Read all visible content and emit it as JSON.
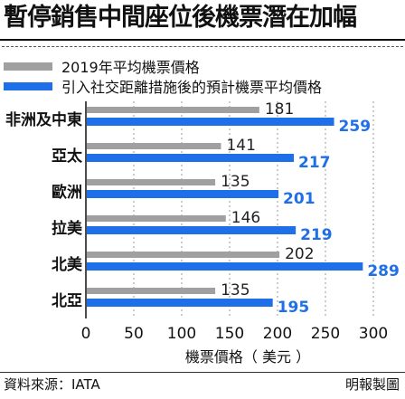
{
  "title": "暫停銷售中間座位後機票潛在加幅",
  "legend": [
    {
      "label": "2019年平均機票價格",
      "color": "#a0a0a0"
    },
    {
      "label": "引入社交距離措施後的預計機票平均價格",
      "color": "#1f6fe8"
    }
  ],
  "chart_data": {
    "type": "bar",
    "orientation": "horizontal",
    "categories": [
      "非洲及中東",
      "亞太",
      "歐洲",
      "拉美",
      "北美",
      "北亞"
    ],
    "series": [
      {
        "name": "2019年平均機票價格",
        "values": [
          181,
          141,
          135,
          146,
          202,
          135
        ],
        "color": "#a0a0a0"
      },
      {
        "name": "引入社交距離措施後的預計機票平均價格",
        "values": [
          259,
          217,
          201,
          219,
          289,
          195
        ],
        "color": "#1f6fe8"
      }
    ],
    "xlabel": "機票價格（ 美元 ）",
    "xlim": [
      0,
      300
    ],
    "xticks": [
      0,
      50,
      100,
      150,
      200,
      250,
      300
    ],
    "grid": true
  },
  "source": "資料來源：IATA",
  "credit": "明報製圖"
}
